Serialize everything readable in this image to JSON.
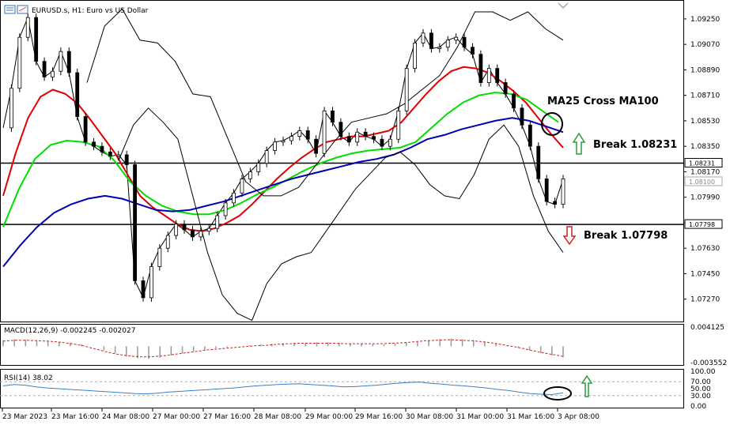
{
  "chart_data": [
    {
      "type": "candlestick",
      "title": "EURUSD.s, H1: Euro vs US Dollar",
      "y_ticks": [
        "1.09250",
        "1.09070",
        "1.08890",
        "1.08710",
        "1.08530",
        "1.08350",
        "1.08170",
        "1.07990",
        "1.07810",
        "1.07630",
        "1.07450",
        "1.07270"
      ],
      "ylim": [
        1.0714,
        1.0935
      ],
      "x_ticks": [
        "23 Mar 2023",
        "23 Mar 16:00",
        "24 Mar 08:00",
        "27 Mar 00:00",
        "27 Mar 16:00",
        "28 Mar 08:00",
        "29 Mar 00:00",
        "29 Mar 16:00",
        "30 Mar 08:00",
        "31 Mar 00:00",
        "31 Mar 16:00",
        "3 Apr 08:00"
      ],
      "level_labels": [
        {
          "text": "1.08231",
          "value": 1.08231,
          "boxed": "dark"
        },
        {
          "text": "1.08100",
          "value": 1.081,
          "boxed": "light"
        },
        {
          "text": "1.07798",
          "value": 1.07798,
          "boxed": "dark"
        }
      ],
      "horizontal_lines": [
        1.08231,
        1.07798
      ],
      "series": [
        {
          "name": "price",
          "color": "#000000",
          "values": [
            1.0848,
            1.0876,
            1.0912,
            1.0926,
            1.0895,
            1.0884,
            1.0888,
            1.0902,
            1.0887,
            1.0856,
            1.0838,
            1.0835,
            1.0831,
            1.0828,
            1.0829,
            1.0822,
            1.074,
            1.0728,
            1.075,
            1.0763,
            1.0772,
            1.078,
            1.0776,
            1.0771,
            1.0775,
            1.0777,
            1.0786,
            1.0795,
            1.0802,
            1.0812,
            1.0817,
            1.0823,
            1.0832,
            1.0838,
            1.0839,
            1.0842,
            1.0846,
            1.084,
            1.083,
            1.086,
            1.0852,
            1.0842,
            1.0838,
            1.0845,
            1.0842,
            1.084,
            1.0835,
            1.084,
            1.086,
            1.089,
            1.0908,
            1.0915,
            1.0904,
            1.0905,
            1.091,
            1.0912,
            1.0905,
            1.09,
            1.088,
            1.089,
            1.088,
            1.0872,
            1.0862,
            1.085,
            1.0835,
            1.0812,
            1.0796,
            1.0794,
            1.0812
          ]
        },
        {
          "name": "ma25",
          "color": "#e00000",
          "values": [
            1.08,
            1.083,
            1.0855,
            1.087,
            1.0875,
            1.0872,
            1.0865,
            1.0854,
            1.0842,
            1.083,
            1.0815,
            1.08,
            1.0792,
            1.0786,
            1.078,
            1.0776,
            1.0775,
            1.0777,
            1.0781,
            1.0786,
            1.0794,
            1.0803,
            1.0812,
            1.082,
            1.0827,
            1.0833,
            1.0838,
            1.084,
            1.0842,
            1.0842,
            1.0844,
            1.0846,
            1.0852,
            1.0862,
            1.0872,
            1.0881,
            1.0888,
            1.0891,
            1.089,
            1.0887,
            1.0881,
            1.0874,
            1.0866,
            1.0855,
            1.0844,
            1.0834
          ]
        },
        {
          "name": "ma",
          "color": "#00dd00",
          "values": [
            1.0778,
            1.0805,
            1.0826,
            1.0836,
            1.0839,
            1.0838,
            1.0835,
            1.0825,
            1.081,
            1.08,
            1.0793,
            1.0789,
            1.0787,
            1.0787,
            1.079,
            1.0795,
            1.0801,
            1.0806,
            1.0812,
            1.0818,
            1.0823,
            1.0827,
            1.083,
            1.0832,
            1.0833,
            1.0834,
            1.0838,
            1.0848,
            1.0858,
            1.0866,
            1.0871,
            1.0873,
            1.0872,
            1.0868,
            1.086,
            1.0852
          ]
        },
        {
          "name": "ma100",
          "color": "#0000b0",
          "values": [
            1.075,
            1.0765,
            1.0778,
            1.0788,
            1.0794,
            1.0798,
            1.08,
            1.0798,
            1.0794,
            1.079,
            1.0789,
            1.079,
            1.0793,
            1.0796,
            1.08,
            1.0804,
            1.0808,
            1.0812,
            1.0815,
            1.0818,
            1.0821,
            1.0824,
            1.0826,
            1.0829,
            1.0834,
            1.084,
            1.0843,
            1.0847,
            1.085,
            1.0853,
            1.0855,
            1.0853,
            1.0849,
            1.0845
          ]
        },
        {
          "name": "bb_upper",
          "color": "#000000",
          "values": [
            1.088,
            1.092,
            1.0932,
            1.091,
            1.0908,
            1.0895,
            1.0872,
            1.087,
            1.084,
            1.081,
            1.08,
            1.08,
            1.0806,
            1.0822,
            1.0838,
            1.0852,
            1.0855,
            1.0858,
            1.0865,
            1.0875,
            1.0885,
            1.0905,
            1.093,
            1.093,
            1.0924,
            1.093,
            1.0918,
            1.091
          ]
        },
        {
          "name": "bb_lower",
          "color": "#000000",
          "values": [
            1.0825,
            1.085,
            1.0862,
            1.0852,
            1.084,
            1.08,
            1.076,
            1.073,
            1.0717,
            1.0712,
            1.0738,
            1.0752,
            1.0757,
            1.076,
            1.0775,
            1.079,
            1.0805,
            1.0816,
            1.0827,
            1.0831,
            1.0822,
            1.0808,
            1.08,
            1.0798,
            1.0815,
            1.084,
            1.085,
            1.0835,
            1.08,
            1.0775,
            1.076
          ]
        }
      ],
      "annotations": [
        {
          "text": "MA25 Cross MA100"
        },
        {
          "text": "Break 1.08231",
          "arrow": "up",
          "arrow_color": "#2a9d3a"
        },
        {
          "text": "Break 1.07798",
          "arrow": "down",
          "arrow_color": "#d02020"
        }
      ]
    },
    {
      "type": "histogram",
      "title": "MACD(12,26,9) -0.002245 -0.002027",
      "y_ticks": [
        "0.004125",
        "-0.003552"
      ],
      "ylim": [
        -0.003552,
        0.004125
      ],
      "series": [
        {
          "name": "MACD",
          "color": "#999999",
          "values": [
            0.0012,
            0.0014,
            0.0013,
            0.0011,
            0.001,
            0.0009,
            0.0007,
            0.0004,
            0.0,
            -0.0008,
            -0.0014,
            -0.002,
            -0.0024,
            -0.0025,
            -0.0022,
            -0.0018,
            -0.0014,
            -0.001,
            -0.0007,
            -0.0004,
            -0.0002,
            0.0,
            0.0002,
            0.0004,
            0.0005,
            0.0006,
            0.0007,
            0.0007,
            0.0008,
            0.0008,
            0.0007,
            0.0006,
            0.0005,
            0.0004,
            0.0004,
            0.0005,
            0.0007,
            0.0009,
            0.0012,
            0.0014,
            0.0015,
            0.0014,
            0.0012,
            0.0009,
            0.0005,
            0.0001,
            -0.0003,
            -0.0008,
            -0.0013,
            -0.0018,
            -0.0022
          ]
        },
        {
          "name": "Signal",
          "color": "#d02020",
          "values": [
            0.001,
            0.0012,
            0.0012,
            0.0011,
            0.001,
            0.0008,
            0.0005,
            0.0001,
            -0.0005,
            -0.0011,
            -0.0016,
            -0.0019,
            -0.0021,
            -0.0021,
            -0.0019,
            -0.0016,
            -0.0013,
            -0.001,
            -0.0007,
            -0.0005,
            -0.0003,
            -0.0001,
            0.0001,
            0.0002,
            0.0004,
            0.0005,
            0.0006,
            0.0006,
            0.0006,
            0.0006,
            0.0005,
            0.0005,
            0.0005,
            0.0005,
            0.0006,
            0.0007,
            0.0009,
            0.0011,
            0.0012,
            0.0013,
            0.0012,
            0.0011,
            0.0009,
            0.0006,
            0.0002,
            -0.0002,
            -0.0007,
            -0.0012,
            -0.0016,
            -0.002
          ]
        }
      ]
    },
    {
      "type": "line",
      "title": "RSI(14) 38.02",
      "y_ticks": [
        "100.00",
        "70.00",
        "50.00",
        "30.00",
        "0.00"
      ],
      "ylim": [
        0,
        100
      ],
      "levels": [
        70,
        30
      ],
      "series": [
        {
          "name": "RSI",
          "color": "#3c7fc4",
          "values": [
            58,
            62,
            60,
            55,
            52,
            50,
            48,
            46,
            44,
            42,
            40,
            38,
            36,
            35,
            37,
            40,
            42,
            44,
            46,
            48,
            50,
            52,
            55,
            58,
            60,
            62,
            63,
            64,
            62,
            60,
            58,
            55,
            56,
            58,
            60,
            63,
            66,
            68,
            69,
            65,
            63,
            60,
            58,
            55,
            52,
            48,
            45,
            40,
            36,
            34,
            33,
            38
          ]
        }
      ],
      "annotations": [
        {
          "text": "",
          "arrow": "up",
          "arrow_color": "#2a9d3a"
        }
      ]
    }
  ]
}
